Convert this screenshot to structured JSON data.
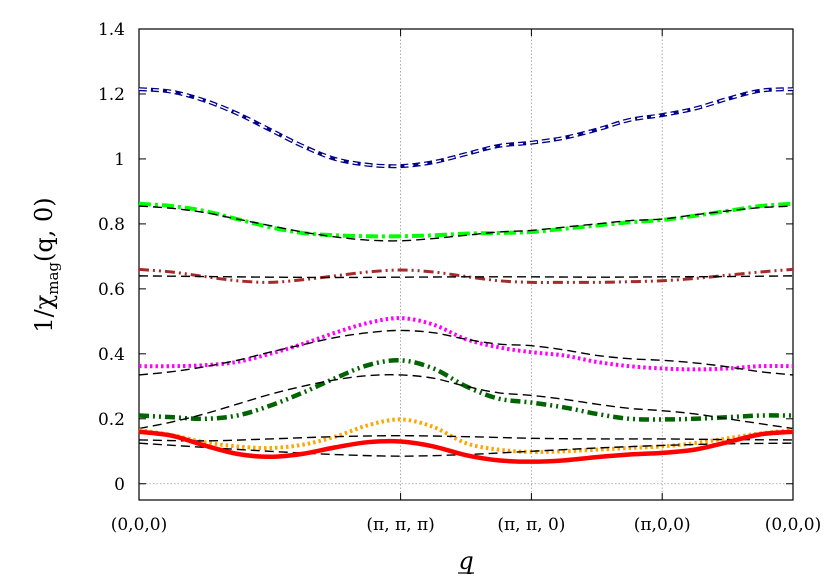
{
  "chart_data": {
    "type": "line",
    "xlabel": "q",
    "ylabel_parts": {
      "prefix": "1/χ",
      "subscript": "mag",
      "suffix": "(q, 0)",
      "arg": "q"
    },
    "xlim": [
      0,
      1
    ],
    "ylim": [
      -0.05,
      1.4
    ],
    "x_ticks": [
      {
        "x": 0,
        "label": "(0,0,0)"
      },
      {
        "x": 0.4,
        "label": "(π, π, π)"
      },
      {
        "x": 0.6,
        "label": "(π, π, 0)"
      },
      {
        "x": 0.8,
        "label": "(π,0,0)"
      },
      {
        "x": 1.0,
        "label": "(0,0,0)"
      }
    ],
    "y_ticks": [
      0,
      0.2,
      0.4,
      0.6,
      0.8,
      1.0,
      1.2,
      1.4
    ],
    "y_tick_labels": [
      "0",
      "0.2",
      "0.4",
      "0.6",
      "0.8",
      "1",
      "1.2",
      "1.4"
    ],
    "grid": "vertical dotted lines at high-symmetry points and dotted line at y=0",
    "series": [
      {
        "color": "#00008b",
        "style": "dashed-thick",
        "x": [
          0,
          0.05,
          0.1,
          0.15,
          0.2,
          0.25,
          0.3,
          0.35,
          0.4,
          0.45,
          0.5,
          0.55,
          0.6,
          0.65,
          0.7,
          0.75,
          0.8,
          0.85,
          0.9,
          0.95,
          1.0
        ],
        "y": [
          1.215,
          1.207,
          1.18,
          1.14,
          1.09,
          1.04,
          1.0,
          0.982,
          0.978,
          0.99,
          1.015,
          1.04,
          1.05,
          1.065,
          1.09,
          1.12,
          1.135,
          1.155,
          1.185,
          1.21,
          1.215
        ]
      },
      {
        "color": "#ffffff",
        "style": "dashed-thin",
        "x": [
          0,
          0.05,
          0.1,
          0.15,
          0.2,
          0.25,
          0.3,
          0.35,
          0.4,
          0.45,
          0.5,
          0.55,
          0.6,
          0.65,
          0.7,
          0.75,
          0.8,
          0.85,
          0.9,
          0.95,
          1.0
        ],
        "y": [
          1.215,
          1.207,
          1.18,
          1.14,
          1.09,
          1.04,
          1.0,
          0.982,
          0.978,
          0.99,
          1.015,
          1.04,
          1.05,
          1.065,
          1.09,
          1.12,
          1.135,
          1.155,
          1.185,
          1.21,
          1.215
        ]
      },
      {
        "color": "#00ff00",
        "style": "dashdot-thick",
        "x": [
          0,
          0.05,
          0.1,
          0.15,
          0.2,
          0.25,
          0.3,
          0.35,
          0.4,
          0.45,
          0.5,
          0.55,
          0.6,
          0.65,
          0.7,
          0.75,
          0.8,
          0.85,
          0.9,
          0.95,
          1.0
        ],
        "y": [
          0.862,
          0.855,
          0.84,
          0.815,
          0.79,
          0.772,
          0.765,
          0.762,
          0.762,
          0.765,
          0.77,
          0.772,
          0.775,
          0.785,
          0.795,
          0.805,
          0.812,
          0.825,
          0.84,
          0.855,
          0.862
        ]
      },
      {
        "color": "#000000",
        "style": "dashed-thin",
        "x": [
          0,
          0.05,
          0.1,
          0.15,
          0.2,
          0.25,
          0.3,
          0.35,
          0.4,
          0.45,
          0.5,
          0.55,
          0.6,
          0.65,
          0.7,
          0.75,
          0.8,
          0.85,
          0.9,
          0.95,
          1.0
        ],
        "y": [
          0.855,
          0.848,
          0.835,
          0.815,
          0.795,
          0.775,
          0.76,
          0.75,
          0.748,
          0.755,
          0.765,
          0.775,
          0.78,
          0.79,
          0.8,
          0.81,
          0.815,
          0.828,
          0.84,
          0.85,
          0.855
        ]
      },
      {
        "color": "#a52a2a",
        "style": "dashdotdot",
        "x": [
          0,
          0.05,
          0.1,
          0.15,
          0.2,
          0.25,
          0.3,
          0.35,
          0.4,
          0.45,
          0.5,
          0.55,
          0.6,
          0.65,
          0.7,
          0.75,
          0.8,
          0.85,
          0.9,
          0.95,
          1.0
        ],
        "y": [
          0.66,
          0.652,
          0.638,
          0.625,
          0.62,
          0.628,
          0.64,
          0.652,
          0.658,
          0.652,
          0.638,
          0.625,
          0.62,
          0.62,
          0.62,
          0.622,
          0.625,
          0.632,
          0.642,
          0.652,
          0.66
        ]
      },
      {
        "color": "#000000",
        "style": "dashed-thin",
        "x": [
          0,
          0.1,
          0.2,
          0.3,
          0.4,
          0.5,
          0.6,
          0.7,
          0.8,
          0.9,
          1.0
        ],
        "y": [
          0.64,
          0.638,
          0.636,
          0.635,
          0.636,
          0.637,
          0.637,
          0.636,
          0.637,
          0.638,
          0.64
        ]
      },
      {
        "color": "#ff00ff",
        "style": "dotted-thick",
        "x": [
          0,
          0.05,
          0.1,
          0.15,
          0.2,
          0.25,
          0.3,
          0.35,
          0.4,
          0.45,
          0.5,
          0.55,
          0.6,
          0.65,
          0.7,
          0.75,
          0.8,
          0.85,
          0.9,
          0.95,
          1.0
        ],
        "y": [
          0.362,
          0.362,
          0.365,
          0.375,
          0.4,
          0.43,
          0.465,
          0.495,
          0.51,
          0.49,
          0.445,
          0.42,
          0.405,
          0.395,
          0.375,
          0.362,
          0.355,
          0.352,
          0.355,
          0.362,
          0.362
        ]
      },
      {
        "color": "#000000",
        "style": "dashed-thin",
        "x": [
          0,
          0.05,
          0.1,
          0.15,
          0.2,
          0.25,
          0.3,
          0.35,
          0.4,
          0.45,
          0.5,
          0.55,
          0.6,
          0.65,
          0.7,
          0.75,
          0.8,
          0.85,
          0.9,
          0.95,
          1.0
        ],
        "y": [
          0.335,
          0.345,
          0.36,
          0.38,
          0.405,
          0.428,
          0.45,
          0.465,
          0.472,
          0.465,
          0.445,
          0.43,
          0.425,
          0.412,
          0.395,
          0.385,
          0.38,
          0.372,
          0.36,
          0.345,
          0.335
        ]
      },
      {
        "color": "#006400",
        "style": "dashdotdot-thick",
        "x": [
          0,
          0.05,
          0.1,
          0.15,
          0.2,
          0.25,
          0.3,
          0.35,
          0.4,
          0.45,
          0.5,
          0.55,
          0.6,
          0.65,
          0.7,
          0.75,
          0.8,
          0.85,
          0.9,
          0.95,
          1.0
        ],
        "y": [
          0.21,
          0.205,
          0.2,
          0.21,
          0.24,
          0.28,
          0.325,
          0.365,
          0.38,
          0.355,
          0.3,
          0.262,
          0.25,
          0.235,
          0.215,
          0.2,
          0.198,
          0.2,
          0.205,
          0.21,
          0.21
        ]
      },
      {
        "color": "#000000",
        "style": "dashed-thin",
        "x": [
          0,
          0.05,
          0.1,
          0.15,
          0.2,
          0.25,
          0.3,
          0.35,
          0.4,
          0.45,
          0.5,
          0.55,
          0.6,
          0.65,
          0.7,
          0.75,
          0.8,
          0.85,
          0.9,
          0.95,
          1.0
        ],
        "y": [
          0.17,
          0.19,
          0.215,
          0.245,
          0.275,
          0.3,
          0.32,
          0.333,
          0.335,
          0.325,
          0.3,
          0.28,
          0.272,
          0.26,
          0.245,
          0.232,
          0.225,
          0.215,
          0.2,
          0.185,
          0.17
        ]
      },
      {
        "color": "#ffa500",
        "style": "dotted-thick",
        "x": [
          0,
          0.05,
          0.1,
          0.15,
          0.2,
          0.25,
          0.3,
          0.35,
          0.4,
          0.45,
          0.5,
          0.55,
          0.6,
          0.65,
          0.7,
          0.75,
          0.8,
          0.85,
          0.9,
          0.95,
          1.0
        ],
        "y": [
          0.165,
          0.15,
          0.128,
          0.115,
          0.11,
          0.12,
          0.145,
          0.18,
          0.198,
          0.175,
          0.125,
          0.105,
          0.098,
          0.1,
          0.105,
          0.11,
          0.115,
          0.125,
          0.14,
          0.155,
          0.165
        ]
      },
      {
        "color": "#000000",
        "style": "dashed-thin",
        "x": [
          0,
          0.1,
          0.2,
          0.3,
          0.4,
          0.5,
          0.6,
          0.7,
          0.8,
          0.9,
          1.0
        ],
        "y": [
          0.135,
          0.132,
          0.138,
          0.145,
          0.148,
          0.145,
          0.14,
          0.138,
          0.138,
          0.136,
          0.135
        ]
      },
      {
        "color": "#000000",
        "style": "dashed-thin",
        "x": [
          0,
          0.1,
          0.2,
          0.3,
          0.4,
          0.5,
          0.6,
          0.7,
          0.8,
          0.9,
          1.0
        ],
        "y": [
          0.125,
          0.112,
          0.1,
          0.09,
          0.085,
          0.09,
          0.1,
          0.11,
          0.118,
          0.123,
          0.125
        ]
      },
      {
        "color": "#ff0000",
        "style": "solid-thick",
        "x": [
          0,
          0.05,
          0.1,
          0.15,
          0.2,
          0.25,
          0.3,
          0.35,
          0.4,
          0.45,
          0.5,
          0.55,
          0.6,
          0.65,
          0.7,
          0.75,
          0.8,
          0.85,
          0.9,
          0.95,
          1.0
        ],
        "y": [
          0.16,
          0.148,
          0.118,
          0.092,
          0.083,
          0.092,
          0.112,
          0.128,
          0.13,
          0.115,
          0.088,
          0.072,
          0.068,
          0.072,
          0.082,
          0.09,
          0.095,
          0.105,
          0.128,
          0.152,
          0.16
        ]
      }
    ]
  }
}
